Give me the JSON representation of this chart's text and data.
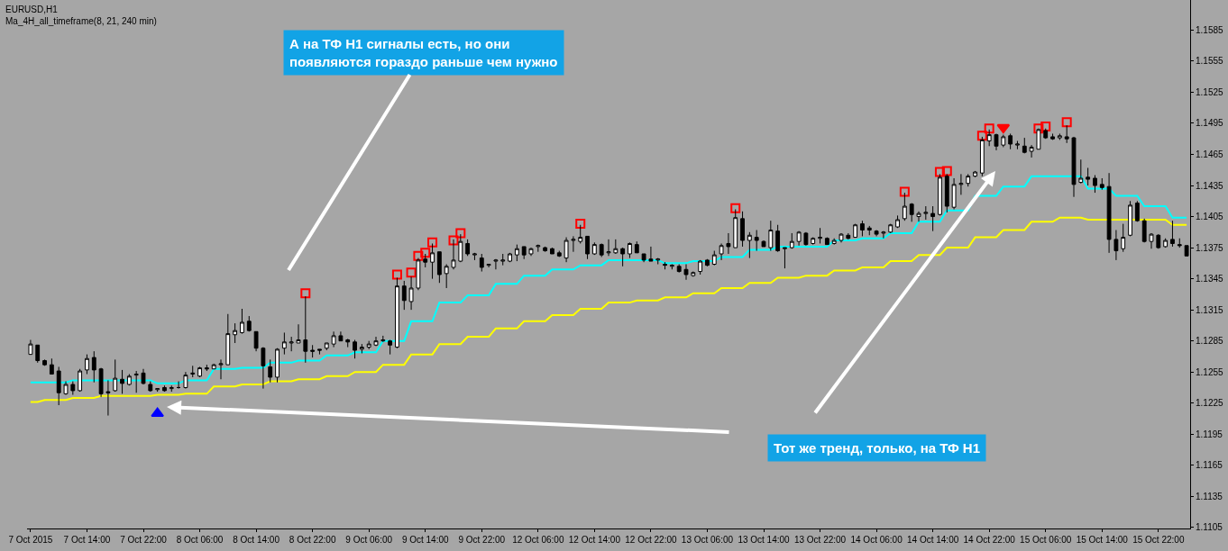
{
  "chart_data": {
    "type": "candlestick",
    "title": "EURUSD,H1",
    "subtitle": "Ma_4H_all_timeframe(8, 21, 240 min)",
    "categories": [
      "7 Oct 2015",
      null,
      null,
      null,
      null,
      null,
      null,
      null,
      "7 Oct 14:00",
      null,
      null,
      null,
      null,
      null,
      null,
      null,
      "7 Oct 22:00",
      null,
      null,
      null,
      null,
      null,
      null,
      null,
      "8 Oct 06:00",
      null,
      null,
      null,
      null,
      null,
      null,
      null,
      "8 Oct 14:00",
      null,
      null,
      null,
      null,
      null,
      null,
      null,
      "8 Oct 22:00",
      null,
      null,
      null,
      null,
      null,
      null,
      null,
      "9 Oct 06:00",
      null,
      null,
      null,
      null,
      null,
      null,
      null,
      "9 Oct 14:00",
      null,
      null,
      null,
      null,
      null,
      null,
      null,
      "9 Oct 22:00",
      null,
      null,
      null,
      null,
      null,
      null,
      null,
      "12 Oct 06:00",
      null,
      null,
      null,
      null,
      null,
      null,
      null,
      "12 Oct 14:00",
      null,
      null,
      null,
      null,
      null,
      null,
      null,
      "12 Oct 22:00",
      null,
      null,
      null,
      null,
      null,
      null,
      null,
      "13 Oct 06:00",
      null,
      null,
      null,
      null,
      null,
      null,
      null,
      "13 Oct 14:00",
      null,
      null,
      null,
      null,
      null,
      null,
      null,
      "13 Oct 22:00",
      null,
      null,
      null,
      null,
      null,
      null,
      null,
      "14 Oct 06:00",
      null,
      null,
      null,
      null,
      null,
      null,
      null,
      "14 Oct 14:00",
      null,
      null,
      null,
      null,
      null,
      null,
      null,
      "14 Oct 22:00",
      null,
      null,
      null,
      null,
      null,
      null,
      null,
      "15 Oct 06:00",
      null,
      null,
      null,
      null,
      null,
      null,
      null,
      "15 Oct 14:00",
      null,
      null,
      null,
      null,
      null,
      null,
      null,
      "15 Oct 22:00",
      null,
      null,
      null,
      null
    ],
    "ohlc": [
      [
        1.1272,
        1.1286,
        1.1272,
        1.1282
      ],
      [
        1.1281,
        1.1281,
        1.1264,
        1.1266
      ],
      [
        1.1266,
        1.1267,
        1.1261,
        1.1262
      ],
      [
        1.1262,
        1.1268,
        1.1253,
        1.1253
      ],
      [
        1.1256,
        1.126,
        1.1223,
        1.1235
      ],
      [
        1.1234,
        1.1246,
        1.1233,
        1.1243
      ],
      [
        1.1243,
        1.1246,
        1.1233,
        1.1237
      ],
      [
        1.1237,
        1.1258,
        1.1236,
        1.1256
      ],
      [
        1.1257,
        1.1272,
        1.1253,
        1.1268
      ],
      [
        1.1269,
        1.1275,
        1.1245,
        1.1257
      ],
      [
        1.1258,
        1.1259,
        1.1231,
        1.1234
      ],
      [
        1.1236,
        1.1247,
        1.1213,
        1.1235
      ],
      [
        1.1237,
        1.1267,
        1.1236,
        1.1249
      ],
      [
        1.1248,
        1.1257,
        1.1234,
        1.1244
      ],
      [
        1.1243,
        1.1253,
        1.1242,
        1.1251
      ],
      [
        1.1252,
        1.1256,
        1.1235,
        1.1253
      ],
      [
        1.1254,
        1.1258,
        1.1243,
        1.1244
      ],
      [
        1.1243,
        1.1246,
        1.1236,
        1.1237
      ],
      [
        1.1238,
        1.1239,
        1.1236,
        1.1239
      ],
      [
        1.124,
        1.1242,
        1.1236,
        1.1237
      ],
      [
        1.1239,
        1.1242,
        1.1236,
        1.124
      ],
      [
        1.124,
        1.1246,
        1.1239,
        1.124
      ],
      [
        1.124,
        1.1255,
        1.1239,
        1.1252
      ],
      [
        1.1253,
        1.1261,
        1.125,
        1.1254
      ],
      [
        1.1251,
        1.126,
        1.125,
        1.1259
      ],
      [
        1.1259,
        1.1262,
        1.1256,
        1.1258
      ],
      [
        1.1258,
        1.1263,
        1.1258,
        1.1262
      ],
      [
        1.1262,
        1.1267,
        1.1248,
        1.1263
      ],
      [
        1.1262,
        1.1311,
        1.1262,
        1.1292
      ],
      [
        1.1291,
        1.1302,
        1.1283,
        1.1295
      ],
      [
        1.1293,
        1.1316,
        1.1292,
        1.1303
      ],
      [
        1.1304,
        1.1309,
        1.1294,
        1.1295
      ],
      [
        1.1294,
        1.1294,
        1.1275,
        1.1278
      ],
      [
        1.1278,
        1.1279,
        1.1239,
        1.1261
      ],
      [
        1.126,
        1.1267,
        1.1245,
        1.125
      ],
      [
        1.125,
        1.1278,
        1.1245,
        1.1277
      ],
      [
        1.1278,
        1.1293,
        1.1272,
        1.1284
      ],
      [
        1.1283,
        1.1289,
        1.1275,
        1.1284
      ],
      [
        1.1283,
        1.1301,
        1.1283,
        1.1286
      ],
      [
        1.1286,
        1.1328,
        1.1264,
        1.1275
      ],
      [
        1.1276,
        1.1281,
        1.1269,
        1.1275
      ],
      [
        1.1277,
        1.1277,
        1.1272,
        1.1276
      ],
      [
        1.1278,
        1.1283,
        1.1276,
        1.1283
      ],
      [
        1.1282,
        1.1294,
        1.1279,
        1.129
      ],
      [
        1.129,
        1.1294,
        1.1285,
        1.1285
      ],
      [
        1.1286,
        1.1287,
        1.1279,
        1.1284
      ],
      [
        1.1284,
        1.1286,
        1.1268,
        1.1276
      ],
      [
        1.1277,
        1.1282,
        1.1273,
        1.1279
      ],
      [
        1.1279,
        1.1285,
        1.1277,
        1.1282
      ],
      [
        1.1281,
        1.1289,
        1.128,
        1.1285
      ],
      [
        1.1285,
        1.129,
        1.1284,
        1.1286
      ],
      [
        1.1285,
        1.1286,
        1.1272,
        1.1281
      ],
      [
        1.1279,
        1.1346,
        1.1278,
        1.1338
      ],
      [
        1.1338,
        1.1343,
        1.1315,
        1.1324
      ],
      [
        1.1323,
        1.1347,
        1.1315,
        1.1336
      ],
      [
        1.1336,
        1.1365,
        1.1334,
        1.1363
      ],
      [
        1.1364,
        1.1369,
        1.1356,
        1.1361
      ],
      [
        1.1361,
        1.1379,
        1.1345,
        1.137
      ],
      [
        1.1371,
        1.1371,
        1.1341,
        1.1349
      ],
      [
        1.135,
        1.1359,
        1.1336,
        1.1357
      ],
      [
        1.1356,
        1.1383,
        1.1354,
        1.1363
      ],
      [
        1.1362,
        1.1388,
        1.1361,
        1.1381
      ],
      [
        1.1379,
        1.1383,
        1.1367,
        1.1369
      ],
      [
        1.1368,
        1.137,
        1.1363,
        1.1369
      ],
      [
        1.1365,
        1.1369,
        1.1352,
        1.1356
      ],
      [
        1.1358,
        1.1359,
        1.1356,
        1.1359
      ],
      [
        1.1362,
        1.1364,
        1.1354,
        1.1363
      ],
      [
        1.1362,
        1.1369,
        1.1358,
        1.1363
      ],
      [
        1.1362,
        1.137,
        1.1361,
        1.1369
      ],
      [
        1.1368,
        1.1378,
        1.1362,
        1.1374
      ],
      [
        1.1376,
        1.1376,
        1.1364,
        1.1368
      ],
      [
        1.1369,
        1.1375,
        1.1367,
        1.1374
      ],
      [
        1.1376,
        1.1378,
        1.1371,
        1.1377
      ],
      [
        1.1375,
        1.1376,
        1.1371,
        1.1372
      ],
      [
        1.1374,
        1.1375,
        1.1369,
        1.1369
      ],
      [
        1.137,
        1.1372,
        1.1366,
        1.1367
      ],
      [
        1.1365,
        1.1385,
        1.1361,
        1.1382
      ],
      [
        1.1382,
        1.1386,
        1.1371,
        1.1383
      ],
      [
        1.1381,
        1.1397,
        1.1379,
        1.1385
      ],
      [
        1.1386,
        1.1386,
        1.1364,
        1.1369
      ],
      [
        1.1369,
        1.138,
        1.1368,
        1.1378
      ],
      [
        1.1378,
        1.1379,
        1.1366,
        1.1368
      ],
      [
        1.137,
        1.1383,
        1.1367,
        1.1371
      ],
      [
        1.137,
        1.1383,
        1.1369,
        1.1374
      ],
      [
        1.1374,
        1.1375,
        1.1357,
        1.1369
      ],
      [
        1.1369,
        1.138,
        1.1365,
        1.1379
      ],
      [
        1.1378,
        1.1381,
        1.137,
        1.137
      ],
      [
        1.1369,
        1.1369,
        1.1361,
        1.1363
      ],
      [
        1.1364,
        1.1376,
        1.1362,
        1.1362
      ],
      [
        1.1363,
        1.1365,
        1.1359,
        1.1364
      ],
      [
        1.1359,
        1.1361,
        1.1354,
        1.1358
      ],
      [
        1.1357,
        1.1359,
        1.1354,
        1.1358
      ],
      [
        1.1357,
        1.1359,
        1.1351,
        1.1352
      ],
      [
        1.1354,
        1.1359,
        1.1344,
        1.1349
      ],
      [
        1.1348,
        1.1352,
        1.1347,
        1.1351
      ],
      [
        1.1352,
        1.1363,
        1.1349,
        1.1362
      ],
      [
        1.1363,
        1.1364,
        1.1357,
        1.1358
      ],
      [
        1.1359,
        1.1372,
        1.1358,
        1.1368
      ],
      [
        1.1369,
        1.1379,
        1.1363,
        1.1377
      ],
      [
        1.1379,
        1.1389,
        1.1369,
        1.1376
      ],
      [
        1.1375,
        1.1412,
        1.1375,
        1.1404
      ],
      [
        1.1403,
        1.141,
        1.1376,
        1.1382
      ],
      [
        1.1382,
        1.139,
        1.1365,
        1.1387
      ],
      [
        1.1385,
        1.1392,
        1.1372,
        1.1382
      ],
      [
        1.1381,
        1.1382,
        1.1376,
        1.1376
      ],
      [
        1.1375,
        1.1401,
        1.1372,
        1.1392
      ],
      [
        1.1391,
        1.1397,
        1.1371,
        1.1372
      ],
      [
        1.1374,
        1.1375,
        1.1355,
        1.1375
      ],
      [
        1.1375,
        1.1389,
        1.1374,
        1.1381
      ],
      [
        1.1381,
        1.1391,
        1.1377,
        1.139
      ],
      [
        1.1389,
        1.139,
        1.1377,
        1.1378
      ],
      [
        1.1379,
        1.1385,
        1.1378,
        1.1384
      ],
      [
        1.1384,
        1.1394,
        1.1379,
        1.1385
      ],
      [
        1.1384,
        1.1385,
        1.1378,
        1.1378
      ],
      [
        1.1379,
        1.1384,
        1.1378,
        1.1382
      ],
      [
        1.1382,
        1.1389,
        1.138,
        1.1388
      ],
      [
        1.1387,
        1.1389,
        1.1383,
        1.1384
      ],
      [
        1.1385,
        1.1398,
        1.1385,
        1.1397
      ],
      [
        1.1398,
        1.1401,
        1.1386,
        1.1392
      ],
      [
        1.1394,
        1.1396,
        1.1387,
        1.1392
      ],
      [
        1.1391,
        1.1392,
        1.1386,
        1.1388
      ],
      [
        1.1389,
        1.1391,
        1.1384,
        1.139
      ],
      [
        1.139,
        1.1398,
        1.1389,
        1.1397
      ],
      [
        1.1395,
        1.1406,
        1.1394,
        1.1402
      ],
      [
        1.1403,
        1.1428,
        1.1401,
        1.1415
      ],
      [
        1.1417,
        1.1418,
        1.14,
        1.1407
      ],
      [
        1.1405,
        1.141,
        1.14,
        1.1408
      ],
      [
        1.1408,
        1.1415,
        1.1402,
        1.1409
      ],
      [
        1.1408,
        1.1415,
        1.1391,
        1.1405
      ],
      [
        1.1407,
        1.1446,
        1.1406,
        1.1443
      ],
      [
        1.1444,
        1.1446,
        1.1409,
        1.1415
      ],
      [
        1.1414,
        1.1442,
        1.1412,
        1.1436
      ],
      [
        1.1436,
        1.1446,
        1.1426,
        1.1437
      ],
      [
        1.1437,
        1.1446,
        1.1434,
        1.1444
      ],
      [
        1.1444,
        1.1449,
        1.1443,
        1.1448
      ],
      [
        1.1447,
        1.1482,
        1.1444,
        1.1479
      ],
      [
        1.1478,
        1.1489,
        1.1473,
        1.1484
      ],
      [
        1.1484,
        1.1485,
        1.1469,
        1.1473
      ],
      [
        1.1474,
        1.1484,
        1.1472,
        1.1482
      ],
      [
        1.1483,
        1.1485,
        1.147,
        1.1475
      ],
      [
        1.1474,
        1.1478,
        1.147,
        1.1475
      ],
      [
        1.1473,
        1.1481,
        1.1466,
        1.1467
      ],
      [
        1.1468,
        1.1474,
        1.1462,
        1.1472
      ],
      [
        1.147,
        1.149,
        1.147,
        1.1489
      ],
      [
        1.1488,
        1.149,
        1.148,
        1.1481
      ],
      [
        1.1482,
        1.1485,
        1.1479,
        1.148
      ],
      [
        1.1481,
        1.1485,
        1.1479,
        1.1483
      ],
      [
        1.1482,
        1.1493,
        1.1476,
        1.148
      ],
      [
        1.1481,
        1.1482,
        1.1424,
        1.1436
      ],
      [
        1.1438,
        1.146,
        1.1437,
        1.1442
      ],
      [
        1.1443,
        1.1452,
        1.1435,
        1.1441
      ],
      [
        1.1442,
        1.1445,
        1.1428,
        1.1435
      ],
      [
        1.1436,
        1.1442,
        1.1431,
        1.1433
      ],
      [
        1.1434,
        1.1447,
        1.137,
        1.1383
      ],
      [
        1.1383,
        1.1392,
        1.1363,
        1.1372
      ],
      [
        1.1374,
        1.1398,
        1.1371,
        1.1385
      ],
      [
        1.1387,
        1.142,
        1.1386,
        1.1416
      ],
      [
        1.1418,
        1.142,
        1.14,
        1.1401
      ],
      [
        1.1401,
        1.1403,
        1.138,
        1.1381
      ],
      [
        1.1381,
        1.1389,
        1.1374,
        1.1388
      ],
      [
        1.1387,
        1.1388,
        1.1374,
        1.1375
      ],
      [
        1.1376,
        1.1384,
        1.1375,
        1.1382
      ],
      [
        1.1383,
        1.1401,
        1.1376,
        1.1379
      ],
      [
        1.1378,
        1.1384,
        1.1375,
        1.1377
      ],
      [
        1.1377,
        1.1377,
        1.1367,
        1.1367
      ]
    ],
    "color": "#000000",
    "series": [
      {
        "type": "line",
        "color": "#00ffff",
        "values": [
          1.1245,
          1.1245,
          1.1245,
          1.1245,
          1.1245,
          1.1245,
          1.1247,
          1.1247,
          1.1247,
          1.1247,
          1.1247,
          1.1247,
          1.1247,
          1.1247,
          1.1247,
          1.1247,
          1.1247,
          1.1247,
          1.1244,
          1.1244,
          1.1244,
          1.1244,
          1.1247,
          1.1247,
          1.1247,
          1.1247,
          1.1258,
          1.1258,
          1.1258,
          1.1258,
          1.1259,
          1.1259,
          1.1259,
          1.1259,
          1.1264,
          1.1264,
          1.1264,
          1.1264,
          1.1266,
          1.1266,
          1.1266,
          1.1266,
          1.1271,
          1.1271,
          1.1271,
          1.1271,
          1.1274,
          1.1274,
          1.1274,
          1.1274,
          1.1285,
          1.1285,
          1.1285,
          1.1285,
          1.1304,
          1.1304,
          1.1304,
          1.1304,
          1.1322,
          1.1322,
          1.1322,
          1.1322,
          1.1329,
          1.1329,
          1.1329,
          1.1329,
          1.134,
          1.134,
          1.134,
          1.134,
          1.1348,
          1.1348,
          1.1348,
          1.1348,
          1.1354,
          1.1354,
          1.1354,
          1.1354,
          1.1358,
          1.1358,
          1.1358,
          1.1358,
          1.1363,
          1.1363,
          1.1363,
          1.1363,
          1.1363,
          1.1363,
          1.1363,
          1.1363,
          1.136,
          1.136,
          1.136,
          1.136,
          1.1362,
          1.1362,
          1.1362,
          1.1362,
          1.1366,
          1.1366,
          1.1366,
          1.1366,
          1.1373,
          1.1373,
          1.1373,
          1.1373,
          1.1376,
          1.1376,
          1.1376,
          1.1376,
          1.1376,
          1.1376,
          1.1376,
          1.1376,
          1.1382,
          1.1382,
          1.1382,
          1.1382,
          1.1384,
          1.1384,
          1.1384,
          1.1384,
          1.1389,
          1.1389,
          1.1389,
          1.1389,
          1.14,
          1.14,
          1.14,
          1.14,
          1.1411,
          1.1411,
          1.1411,
          1.1411,
          1.1425,
          1.1425,
          1.1425,
          1.1425,
          1.1434,
          1.1434,
          1.1434,
          1.1434,
          1.1444,
          1.1444,
          1.1444,
          1.1444,
          1.1444,
          1.1444,
          1.1444,
          1.1444,
          1.1432,
          1.1432,
          1.1432,
          1.1432,
          1.1425,
          1.1425,
          1.1425,
          1.1425,
          1.1415,
          1.1415,
          1.1415,
          1.1415,
          1.1404,
          1.1404,
          1.1404
        ]
      },
      {
        "type": "line",
        "color": "#ffff00",
        "values": [
          1.1226,
          1.1226,
          1.1228,
          1.1228,
          1.1228,
          1.1228,
          1.123,
          1.123,
          1.123,
          1.123,
          1.1232,
          1.1232,
          1.1232,
          1.1232,
          1.1232,
          1.1232,
          1.1232,
          1.1232,
          1.1233,
          1.1233,
          1.1233,
          1.1233,
          1.1234,
          1.1234,
          1.1234,
          1.1234,
          1.1241,
          1.1241,
          1.1241,
          1.1241,
          1.1243,
          1.1243,
          1.1243,
          1.1243,
          1.1246,
          1.1246,
          1.1246,
          1.1246,
          1.1248,
          1.1248,
          1.1248,
          1.1248,
          1.1251,
          1.1251,
          1.1251,
          1.1251,
          1.1255,
          1.1255,
          1.1255,
          1.1255,
          1.1262,
          1.1262,
          1.1262,
          1.1262,
          1.1272,
          1.1272,
          1.1272,
          1.1272,
          1.1282,
          1.1282,
          1.1282,
          1.1282,
          1.1289,
          1.1289,
          1.1289,
          1.1289,
          1.1297,
          1.1297,
          1.1297,
          1.1297,
          1.1304,
          1.1304,
          1.1304,
          1.1304,
          1.131,
          1.131,
          1.131,
          1.131,
          1.1316,
          1.1316,
          1.1316,
          1.1316,
          1.1322,
          1.1322,
          1.1322,
          1.1322,
          1.1324,
          1.1324,
          1.1324,
          1.1324,
          1.1327,
          1.1327,
          1.1327,
          1.1327,
          1.1331,
          1.1331,
          1.1331,
          1.1331,
          1.1336,
          1.1336,
          1.1336,
          1.1336,
          1.1341,
          1.1341,
          1.1341,
          1.1341,
          1.1346,
          1.1346,
          1.1346,
          1.1346,
          1.1348,
          1.1348,
          1.1348,
          1.1348,
          1.1353,
          1.1353,
          1.1353,
          1.1353,
          1.1356,
          1.1356,
          1.1356,
          1.1356,
          1.1362,
          1.1362,
          1.1362,
          1.1362,
          1.1368,
          1.1368,
          1.1368,
          1.1368,
          1.1375,
          1.1375,
          1.1375,
          1.1375,
          1.1385,
          1.1385,
          1.1385,
          1.1385,
          1.1392,
          1.1392,
          1.1392,
          1.1392,
          1.14,
          1.14,
          1.14,
          1.14,
          1.1404,
          1.1404,
          1.1404,
          1.1404,
          1.1402,
          1.1402,
          1.1402,
          1.1402,
          1.1402,
          1.1402,
          1.1402,
          1.1402,
          1.1402,
          1.1402,
          1.1402,
          1.1402,
          1.1397,
          1.1397,
          1.1397
        ]
      },
      {
        "type": "scatter",
        "marker": "square",
        "color": "#ff0000",
        "values": [
          null,
          null,
          null,
          null,
          null,
          null,
          null,
          null,
          null,
          null,
          null,
          null,
          null,
          null,
          null,
          null,
          null,
          null,
          null,
          null,
          null,
          null,
          null,
          null,
          null,
          null,
          null,
          null,
          null,
          null,
          null,
          null,
          null,
          null,
          null,
          null,
          null,
          null,
          null,
          1.1331,
          null,
          null,
          null,
          null,
          null,
          null,
          null,
          null,
          null,
          null,
          null,
          null,
          1.1349,
          null,
          1.1351,
          1.1367,
          1.137,
          1.138,
          null,
          null,
          1.1382,
          1.1389,
          null,
          null,
          null,
          null,
          null,
          null,
          null,
          null,
          null,
          null,
          null,
          null,
          null,
          null,
          null,
          null,
          1.1398,
          null,
          null,
          null,
          null,
          null,
          null,
          null,
          null,
          null,
          null,
          null,
          null,
          null,
          null,
          null,
          null,
          null,
          null,
          null,
          null,
          null,
          1.1413,
          null,
          null,
          null,
          null,
          null,
          null,
          null,
          null,
          null,
          null,
          null,
          null,
          null,
          null,
          null,
          null,
          null,
          null,
          null,
          null,
          null,
          null,
          null,
          1.1429,
          null,
          null,
          null,
          null,
          1.1448,
          1.1449,
          null,
          null,
          null,
          null,
          1.1483,
          1.149,
          null,
          null,
          null,
          null,
          null,
          null,
          1.149,
          1.1492,
          null,
          null,
          1.1496,
          null,
          null,
          null,
          null,
          null,
          null,
          null,
          null,
          null,
          null,
          null,
          null,
          null,
          null,
          null,
          null,
          null
        ]
      },
      {
        "type": "scatter",
        "marker": "triangle",
        "color": "#0000ff",
        "values": [
          null,
          null,
          null,
          null,
          null,
          null,
          null,
          null,
          null,
          null,
          null,
          null,
          null,
          null,
          null,
          null,
          null,
          null,
          1.1215,
          null,
          null,
          null,
          null,
          null,
          null,
          null,
          null,
          null,
          null,
          null,
          null,
          null,
          null,
          null,
          null,
          null,
          null,
          null,
          null,
          null,
          null,
          null,
          null,
          null,
          null,
          null,
          null,
          null,
          null,
          null,
          null,
          null,
          null,
          null,
          null,
          null,
          null,
          null,
          null,
          null,
          null,
          null,
          null,
          null,
          null,
          null,
          null,
          null,
          null,
          null,
          null,
          null,
          null,
          null,
          null,
          null,
          null,
          null,
          null,
          null,
          null,
          null,
          null,
          null,
          null,
          null,
          null,
          null,
          null,
          null,
          null,
          null,
          null,
          null,
          null,
          null,
          null,
          null,
          null,
          null,
          null,
          null,
          null,
          null,
          null,
          null,
          null,
          null,
          null,
          null,
          null,
          null,
          null,
          null,
          null,
          null,
          null,
          null,
          null,
          null,
          null,
          null,
          null,
          null,
          null,
          null,
          null,
          null,
          null,
          null,
          null,
          null,
          null,
          null,
          null,
          null,
          null,
          null,
          null,
          null,
          null,
          null,
          null,
          null,
          null,
          null,
          null,
          null,
          null,
          null,
          null,
          null,
          null,
          null,
          null,
          null,
          null,
          null,
          null,
          null,
          null,
          null,
          null,
          null,
          null
        ]
      },
      {
        "type": "scatter",
        "marker": "triangle",
        "color": "#ff0000",
        "values": [
          null,
          null,
          null,
          null,
          null,
          null,
          null,
          null,
          null,
          null,
          null,
          null,
          null,
          null,
          null,
          null,
          null,
          null,
          null,
          null,
          null,
          null,
          null,
          null,
          null,
          null,
          null,
          null,
          null,
          null,
          null,
          null,
          null,
          null,
          null,
          null,
          null,
          null,
          null,
          null,
          null,
          null,
          null,
          null,
          null,
          null,
          null,
          null,
          null,
          null,
          null,
          null,
          null,
          null,
          null,
          null,
          null,
          null,
          null,
          null,
          null,
          null,
          null,
          null,
          null,
          null,
          null,
          null,
          null,
          null,
          null,
          null,
          null,
          null,
          null,
          null,
          null,
          null,
          null,
          null,
          null,
          null,
          null,
          null,
          null,
          null,
          null,
          null,
          null,
          null,
          null,
          null,
          null,
          null,
          null,
          null,
          null,
          null,
          null,
          null,
          null,
          null,
          null,
          null,
          null,
          null,
          null,
          null,
          null,
          null,
          null,
          null,
          null,
          null,
          null,
          null,
          null,
          null,
          null,
          null,
          null,
          null,
          null,
          null,
          null,
          null,
          null,
          null,
          null,
          null,
          null,
          null,
          null,
          null,
          null,
          null,
          null,
          null,
          1.1491,
          null,
          null,
          null,
          null,
          null,
          null,
          null,
          null,
          null,
          null,
          null,
          null,
          null,
          null,
          null,
          null,
          null,
          null,
          null,
          null,
          null,
          null,
          null,
          null,
          null,
          null
        ]
      }
    ],
    "ylim": [
      1.1104,
      1.1614
    ],
    "yticks": [
      1.1105,
      1.1135,
      1.1165,
      1.1195,
      1.1225,
      1.1255,
      1.1285,
      1.1315,
      1.1345,
      1.1375,
      1.1405,
      1.1435,
      1.1465,
      1.1495,
      1.1525,
      1.1555,
      1.1585
    ],
    "annotations": [
      "А на ТФ Н1 сигналы есть, но они\nпоявляются гораздо раньше чем нужно",
      "Тот же тренд, только, на ТФ Н1"
    ],
    "grid": false
  }
}
